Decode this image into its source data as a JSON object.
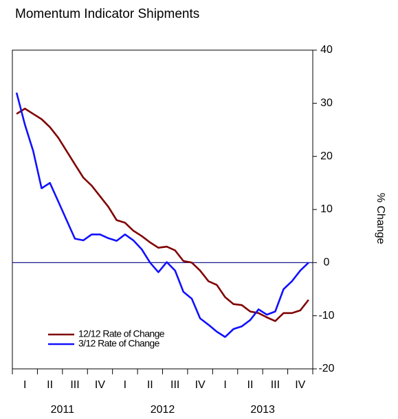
{
  "chart_data": {
    "type": "line",
    "title": "Momentum Indicator Shipments",
    "y_label": "% Change",
    "categories": [
      null,
      "I",
      null,
      null,
      "II",
      null,
      null,
      "III",
      null,
      null,
      "IV",
      null,
      null,
      "I",
      null,
      null,
      "II",
      null,
      null,
      "III",
      null,
      null,
      "IV",
      null,
      null,
      "I",
      null,
      null,
      "II",
      null,
      null,
      "III",
      null,
      null,
      "IV",
      null
    ],
    "years": [
      "2011",
      "2012",
      "2013"
    ],
    "series": [
      {
        "name": "12/12 Rate of Change",
        "color": "#800000",
        "values": [
          28,
          29,
          28,
          27,
          25.5,
          23.5,
          21,
          18.5,
          16,
          14.5,
          12.5,
          10.5,
          8,
          7.5,
          6,
          5,
          3.8,
          2.8,
          3,
          2.3,
          0.3,
          0,
          -1.5,
          -3.5,
          -4.2,
          -6.5,
          -7.8,
          -8,
          -9.2,
          -9.5,
          -10.3,
          -11,
          -9.5,
          -9.5,
          -9,
          -7
        ]
      },
      {
        "name": "3/12 Rate of Change",
        "color": "#1010ff",
        "values": [
          32,
          26,
          21,
          14,
          15,
          11.5,
          8,
          4.5,
          4.2,
          5.3,
          5.3,
          4.6,
          4.1,
          5.3,
          4.2,
          2.5,
          0,
          -1.8,
          0.1,
          -1.5,
          -5.5,
          -6.8,
          -10.5,
          -11.7,
          -13,
          -14,
          -12.5,
          -12,
          -10.8,
          -8.8,
          -9.8,
          -9.2,
          -5,
          -3.5,
          -1.5,
          0
        ]
      }
    ],
    "ylim": [
      -20,
      40
    ],
    "yticks": [
      -20,
      -10,
      0,
      10,
      20,
      30,
      40
    ],
    "y_axis_side": "right",
    "hline": {
      "value": 0,
      "color": "#000080"
    },
    "legend": "lower left"
  }
}
